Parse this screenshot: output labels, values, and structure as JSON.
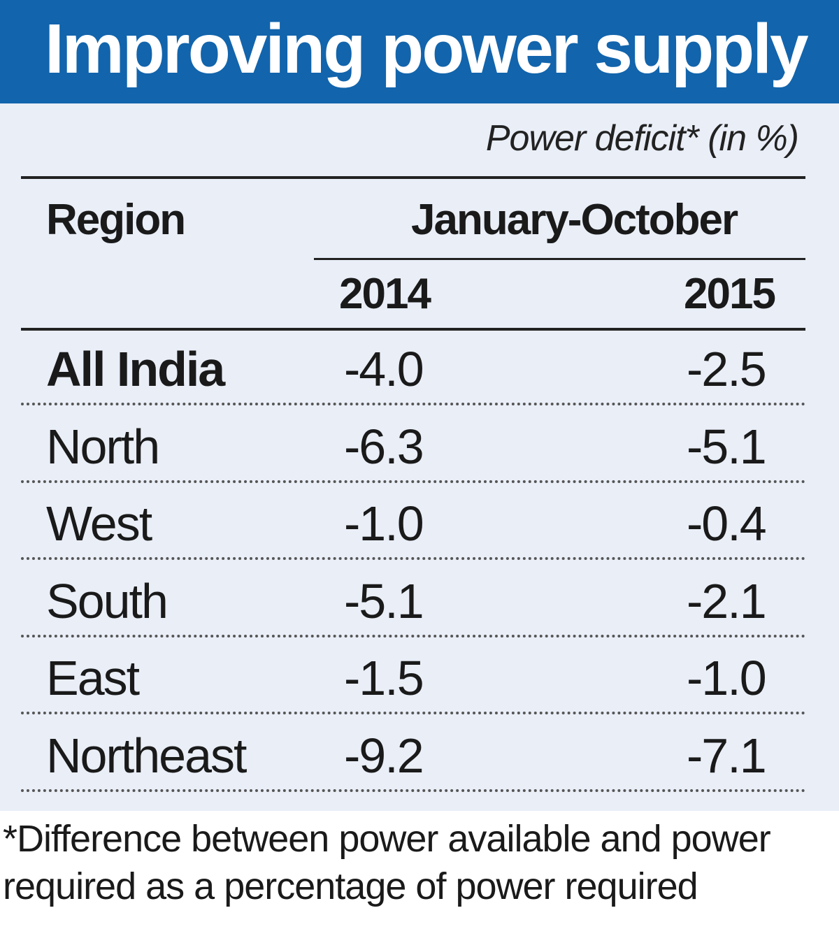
{
  "chart_data": {
    "type": "table",
    "title": "Improving power supply",
    "subtitle": "Power deficit* (in %)",
    "columns": {
      "region": "Region",
      "group": "January-October",
      "years": [
        "2014",
        "2015"
      ]
    },
    "rows": [
      {
        "region": "All India",
        "values": [
          "-4.0",
          "-2.5"
        ],
        "bold": true
      },
      {
        "region": "North",
        "values": [
          "-6.3",
          "-5.1"
        ]
      },
      {
        "region": "West",
        "values": [
          "-1.0",
          "-0.4"
        ]
      },
      {
        "region": "South",
        "values": [
          "-5.1",
          "-2.1"
        ]
      },
      {
        "region": "East",
        "values": [
          "-1.5",
          "-1.0"
        ]
      },
      {
        "region": "Northeast",
        "values": [
          "-9.2",
          "-7.1"
        ]
      }
    ],
    "footnote": "*Difference between power available and power required as a percentage of power required"
  },
  "colors": {
    "header_bg": "#1264ac",
    "panel_bg": "#e9eef7",
    "text": "#1a1a1a"
  }
}
